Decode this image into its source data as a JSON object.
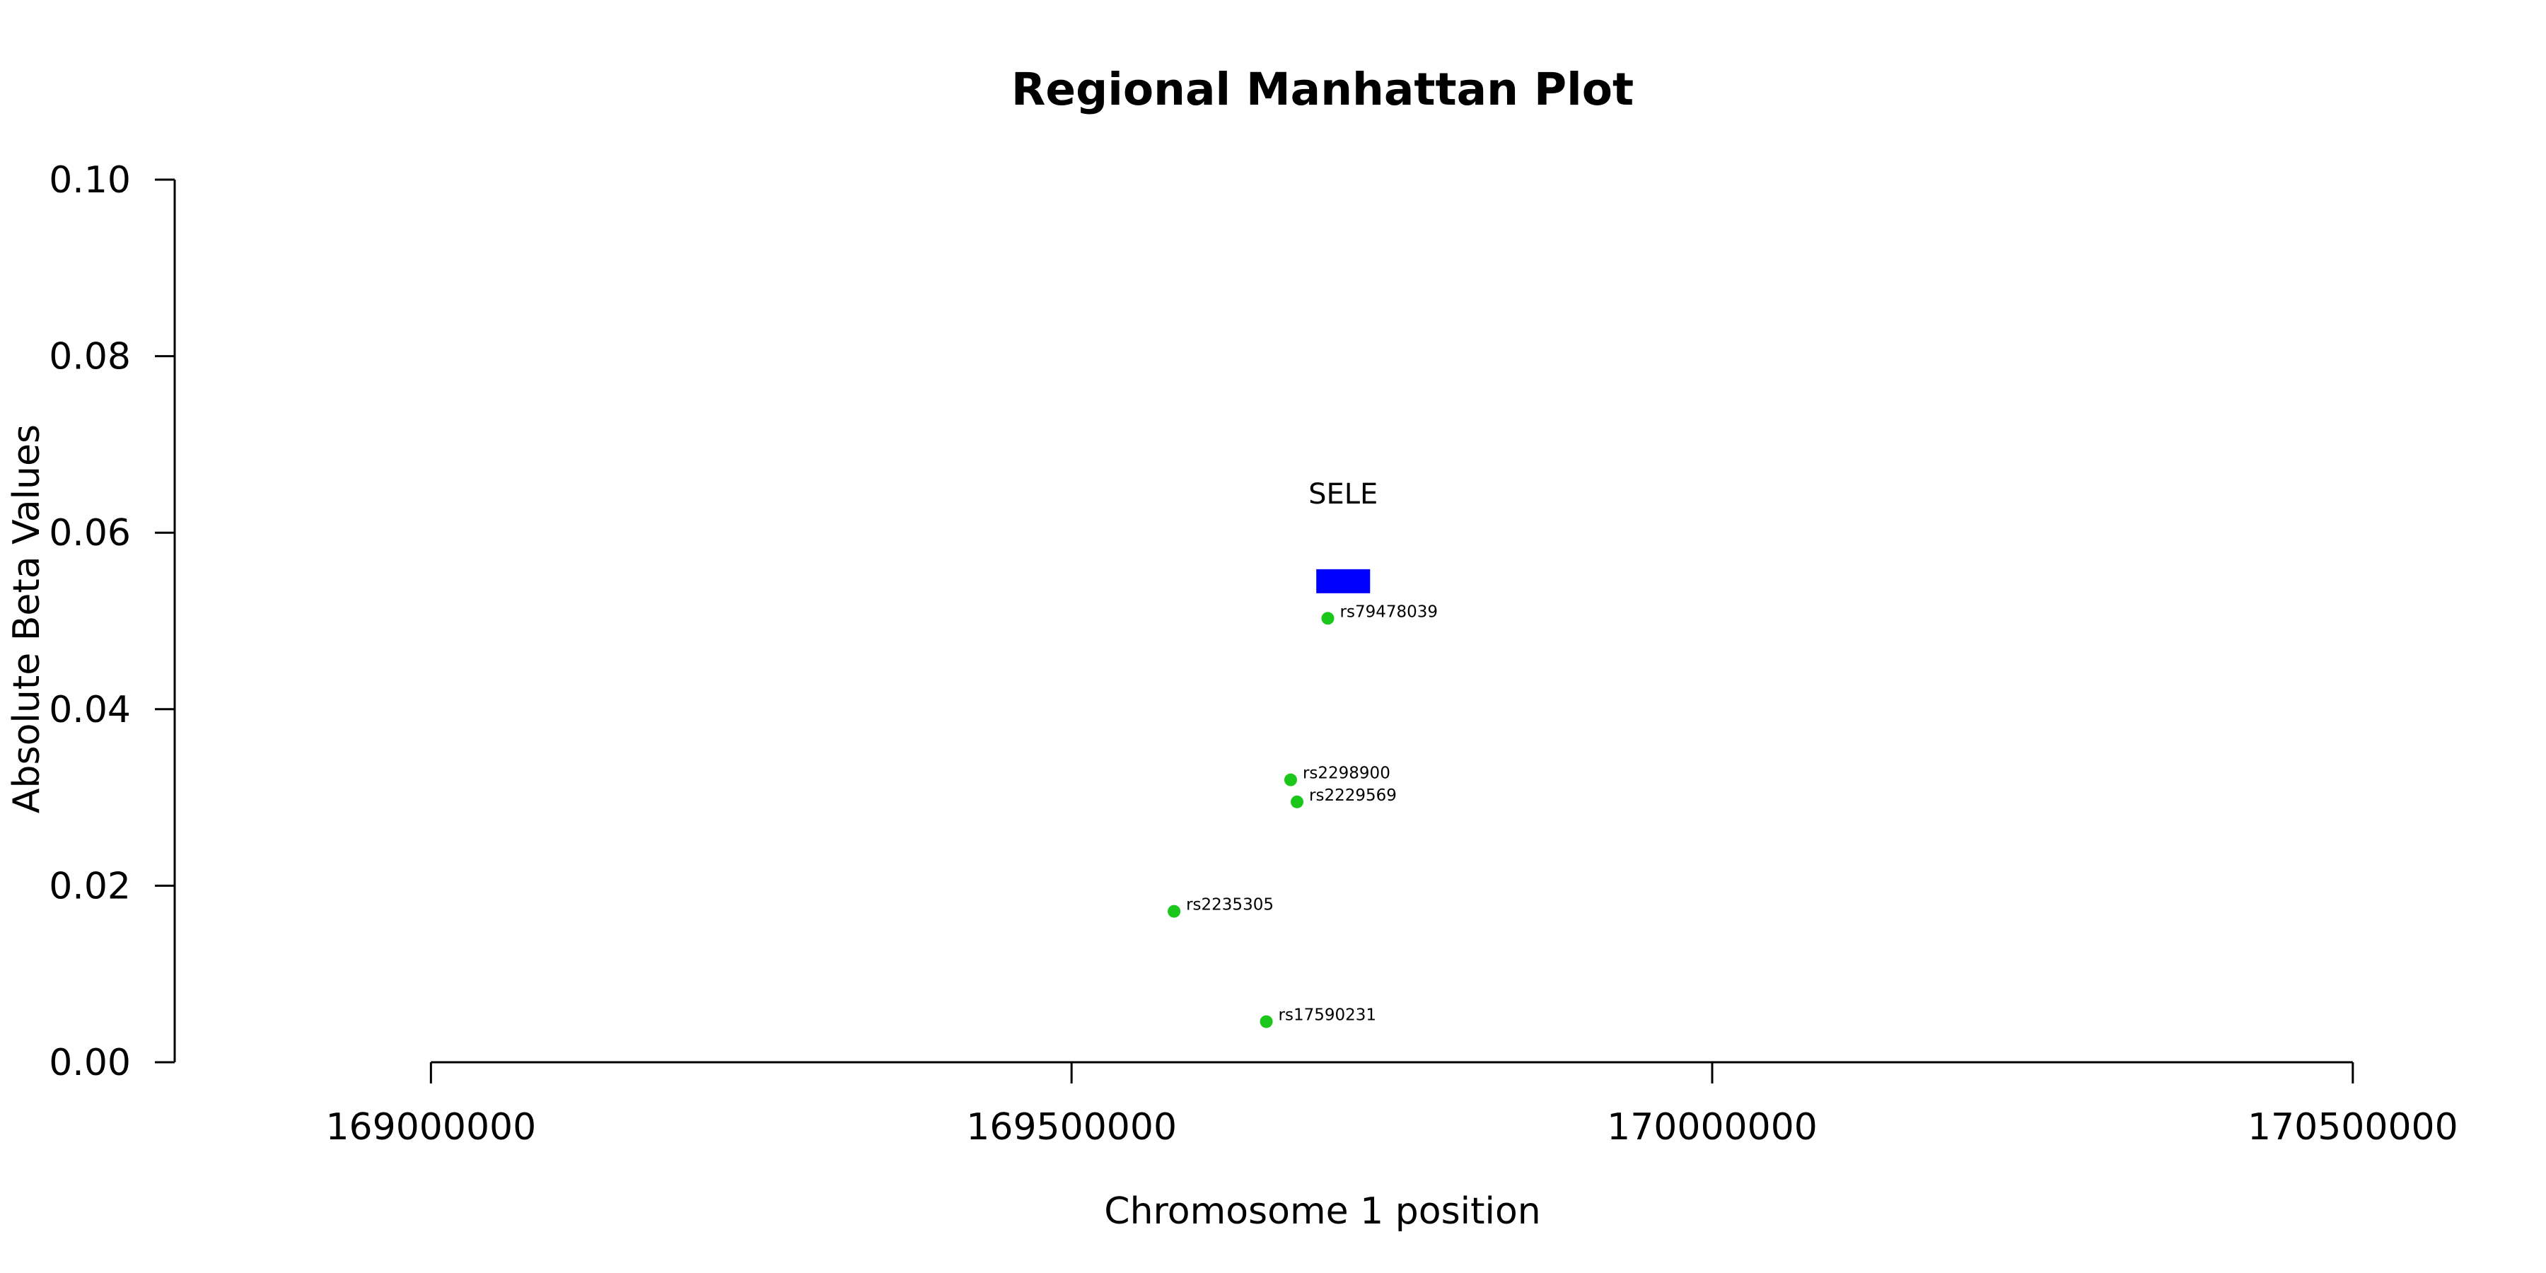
{
  "chart_data": {
    "type": "scatter",
    "title": "Regional Manhattan Plot",
    "xlabel": "Chromosome 1 position",
    "ylabel": "Absolute Beta Values",
    "xlim": [
      168800000,
      170600000
    ],
    "ylim": [
      0,
      0.1
    ],
    "x_axis_range": [
      169000000,
      170500000
    ],
    "x_ticks": [
      169000000,
      169500000,
      170000000,
      170500000
    ],
    "x_tick_labels": [
      "169000000",
      "169500000",
      "170000000",
      "170500000"
    ],
    "y_ticks": [
      0.0,
      0.02,
      0.04,
      0.06,
      0.08,
      0.1
    ],
    "y_tick_labels": [
      "0.00",
      "0.02",
      "0.04",
      "0.06",
      "0.08",
      "0.10"
    ],
    "grid": false,
    "point_color": "#1ac71a",
    "gene_color": "#0000ff",
    "points": [
      {
        "snp": "rs79478039",
        "x": 169700000,
        "y": 0.0503
      },
      {
        "snp": "rs2298900",
        "x": 169671000,
        "y": 0.032
      },
      {
        "snp": "rs2229569",
        "x": 169676000,
        "y": 0.0295
      },
      {
        "snp": "rs2235305",
        "x": 169580000,
        "y": 0.0171
      },
      {
        "snp": "rs17590231",
        "x": 169652000,
        "y": 0.0046
      }
    ],
    "genes": [
      {
        "name": "SELE",
        "start": 169691000,
        "end": 169733000,
        "y": 0.0545
      }
    ]
  }
}
